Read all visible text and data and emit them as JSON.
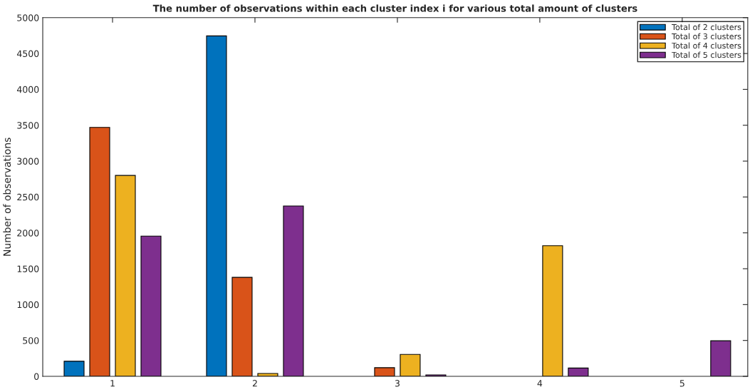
{
  "chart_data": {
    "type": "bar",
    "title": "The number of observations within each cluster index i for various total amount of clusters",
    "ylabel": "Number of observations",
    "categories": [
      "1",
      "2",
      "3",
      "4",
      "5"
    ],
    "series": [
      {
        "name": "Total of 2 clusters",
        "color": "#0072bd",
        "values": [
          210,
          4745,
          null,
          null,
          null
        ]
      },
      {
        "name": "Total of 3 clusters",
        "color": "#d95319",
        "values": [
          3470,
          1380,
          120,
          null,
          null
        ]
      },
      {
        "name": "Total of 4 clusters",
        "color": "#edb120",
        "values": [
          2800,
          40,
          305,
          1820,
          null
        ]
      },
      {
        "name": "Total of 5 clusters",
        "color": "#7e2f8e",
        "values": [
          1955,
          2375,
          20,
          115,
          495
        ]
      }
    ],
    "ylim": [
      0,
      5000
    ],
    "yticks": [
      0,
      500,
      1000,
      1500,
      2000,
      2500,
      3000,
      3500,
      4000,
      4500,
      5000
    ],
    "grid": false,
    "legend": "top right"
  }
}
